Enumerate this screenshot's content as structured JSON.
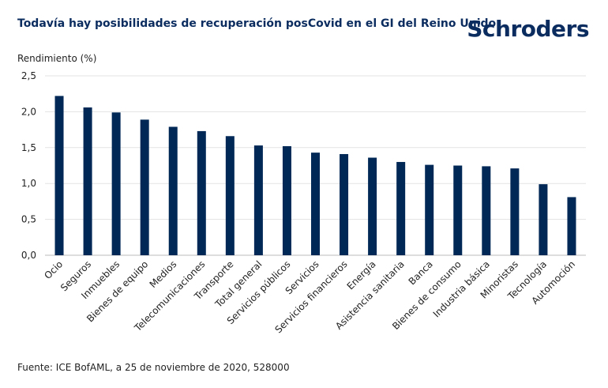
{
  "title": "Todavía hay posibilidades de recuperación posCovid en el GI del Reino Unido",
  "logo": "Schroders",
  "source": "Fuente: ICE BofAML, a 25 de noviembre de 2020, 528000",
  "chart_data": {
    "type": "bar",
    "title": "Todavía hay posibilidades de recuperación posCovid en el GI del Reino Unido",
    "ylabel": "Rendimiento (%)",
    "xlabel": "",
    "ylim": [
      0,
      2.5
    ],
    "yticks": [
      "0,0",
      "0,5",
      "1,0",
      "1,5",
      "2,0",
      "2,5"
    ],
    "grid": true,
    "bar_color": "#002856",
    "categories": [
      "Ocio",
      "Seguros",
      "Inmuebles",
      "Bienes de equipo",
      "Medios",
      "Telecomunicaciones",
      "Transporte",
      "Total general",
      "Servicios públicos",
      "Servicios",
      "Servicios financieros",
      "Energía",
      "Asistencia sanitaria",
      "Banca",
      "Bienes de consumo",
      "Industria básica",
      "Minoristas",
      "Tecnología",
      "Automoción"
    ],
    "values": [
      2.22,
      2.06,
      1.99,
      1.89,
      1.79,
      1.73,
      1.66,
      1.53,
      1.52,
      1.43,
      1.41,
      1.36,
      1.3,
      1.26,
      1.25,
      1.24,
      1.21,
      0.99,
      0.81
    ]
  }
}
